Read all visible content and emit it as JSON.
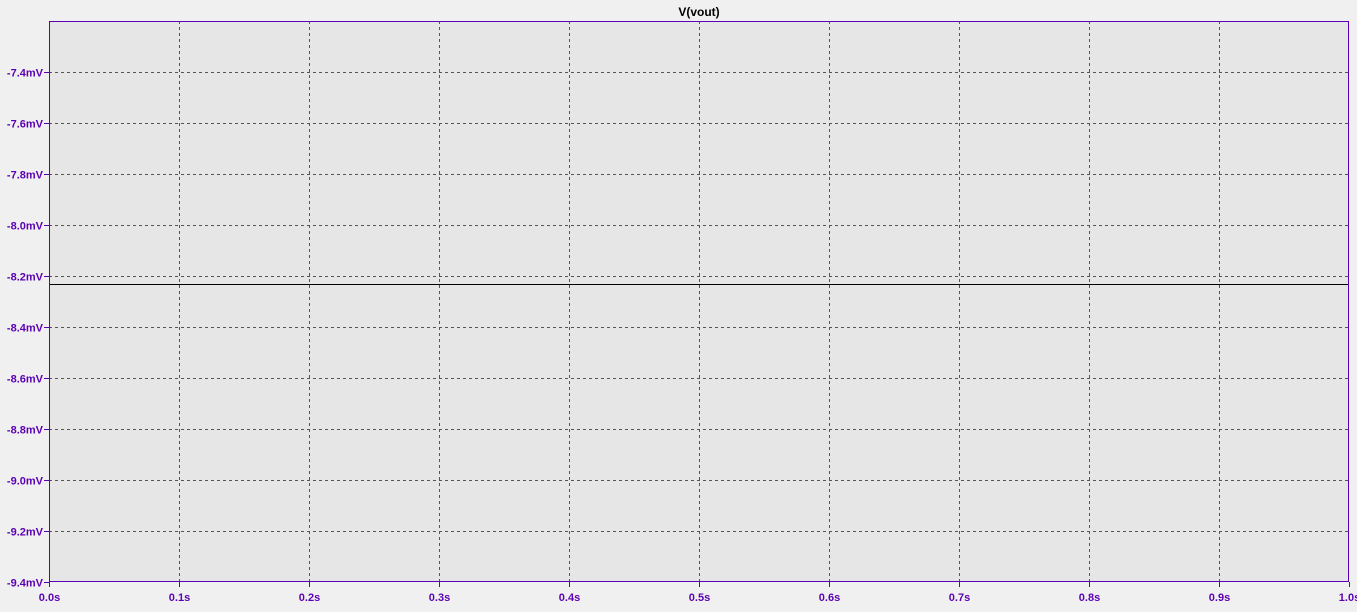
{
  "window": {
    "trace_title": "V(vout)"
  },
  "colors": {
    "axis": "#5b00b4",
    "plot_background": "#e6e6e6",
    "window_background": "#f0f0f0",
    "grid": "#555555",
    "trace": "#000000",
    "title": "#000000"
  },
  "chart_data": {
    "type": "line",
    "title": "V(vout)",
    "xlabel": "",
    "ylabel": "",
    "xlim": [
      0.0,
      1.0
    ],
    "ylim": [
      -9.4,
      -7.2
    ],
    "grid": true,
    "x_ticks": [
      0.0,
      0.1,
      0.2,
      0.3,
      0.4,
      0.5,
      0.6,
      0.7,
      0.8,
      0.9,
      1.0
    ],
    "x_tick_labels": [
      "0.0s",
      "0.1s",
      "0.2s",
      "0.3s",
      "0.4s",
      "0.5s",
      "0.6s",
      "0.7s",
      "0.8s",
      "0.9s",
      "1.0s"
    ],
    "y_ticks": [
      -7.4,
      -7.6,
      -7.8,
      -8.0,
      -8.2,
      -8.4,
      -8.6,
      -8.8,
      -9.0,
      -9.2,
      -9.4
    ],
    "y_tick_labels": [
      "-7.4mV",
      "-7.6mV",
      "-7.8mV",
      "-8.0mV",
      "-8.2mV",
      "-8.4mV",
      "-8.6mV",
      "-8.8mV",
      "-9.0mV",
      "-9.2mV",
      "-9.4mV"
    ],
    "series": [
      {
        "name": "V(vout)",
        "x": [
          0.0,
          1.0
        ],
        "y": [
          -8.23,
          -8.23
        ]
      }
    ]
  }
}
